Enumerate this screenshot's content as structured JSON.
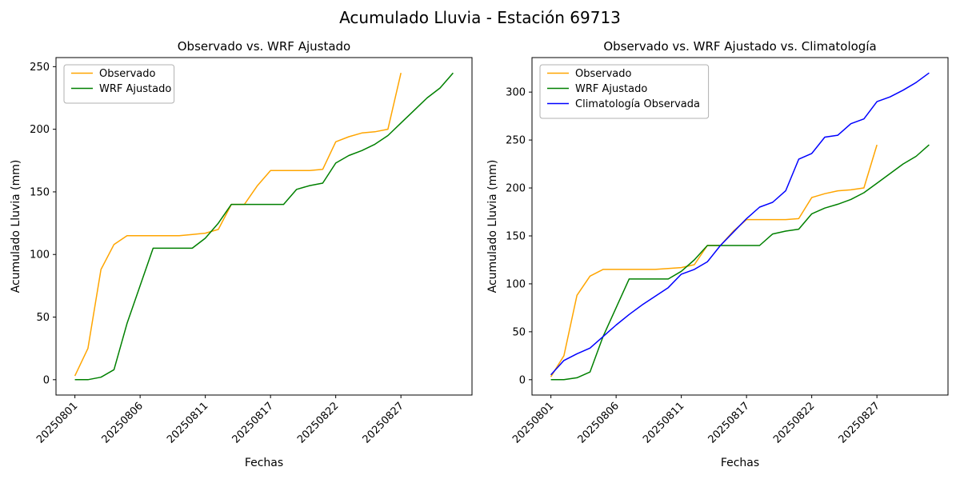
{
  "figure": {
    "title": "Acumulado Lluvia - Estación 69713",
    "background": "#ffffff"
  },
  "colors": {
    "observado": "#ffa500",
    "wrf_ajustado": "#008000",
    "climatologia": "#0000ff",
    "axes": "#000000",
    "legend_border": "#b0b0b0"
  },
  "chart_data": [
    {
      "type": "line",
      "title": "Observado vs. WRF Ajustado",
      "xlabel": "Fechas",
      "ylabel": "Acumulado Lluvia (mm)",
      "grid": false,
      "legend_position": "upper-left",
      "x_dates": [
        "20250801",
        "20250802",
        "20250803",
        "20250804",
        "20250805",
        "20250806",
        "20250807",
        "20250808",
        "20250809",
        "20250810",
        "20250811",
        "20250813",
        "20250814",
        "20250815",
        "20250816",
        "20250817",
        "20250818",
        "20250819",
        "20250820",
        "20250821",
        "20250822",
        "20250823",
        "20250824",
        "20250825",
        "20250826",
        "20250827",
        "20250828",
        "20250829",
        "20250830",
        "20250831"
      ],
      "x_tick_indices": [
        0,
        5,
        10,
        15,
        20,
        25
      ],
      "x_tick_labels": [
        "20250801",
        "20250806",
        "20250811",
        "20250817",
        "20250822",
        "20250827"
      ],
      "x_tick_rotation": 45,
      "y_ticks": [
        0,
        50,
        100,
        150,
        200,
        250
      ],
      "ylim": [
        -12.25,
        257.25
      ],
      "xlim": [
        -1.45,
        30.45
      ],
      "series": [
        {
          "name": "observado",
          "label": "Observado",
          "color": "#ffa500",
          "values": [
            3,
            25,
            88,
            108,
            115,
            115,
            115,
            115,
            115,
            116,
            117,
            120,
            140,
            140,
            155,
            167,
            167,
            167,
            167,
            168,
            190,
            194,
            197,
            198,
            200,
            245,
            null,
            null,
            null,
            null
          ]
        },
        {
          "name": "wrf-ajustado",
          "label": "WRF Ajustado",
          "color": "#008000",
          "values": [
            0,
            0,
            2,
            8,
            45,
            75,
            105,
            105,
            105,
            105,
            113,
            125,
            140,
            140,
            140,
            140,
            140,
            152,
            155,
            157,
            173,
            179,
            183,
            188,
            195,
            205,
            215,
            225,
            233,
            245
          ]
        }
      ]
    },
    {
      "type": "line",
      "title": "Observado vs. WRF Ajustado vs. Climatología",
      "xlabel": "Fechas",
      "ylabel": "Acumulado Lluvia (mm)",
      "grid": false,
      "legend_position": "upper-left",
      "x_dates": [
        "20250801",
        "20250802",
        "20250803",
        "20250804",
        "20250805",
        "20250806",
        "20250807",
        "20250808",
        "20250809",
        "20250810",
        "20250811",
        "20250813",
        "20250814",
        "20250815",
        "20250816",
        "20250817",
        "20250818",
        "20250819",
        "20250820",
        "20250821",
        "20250822",
        "20250823",
        "20250824",
        "20250825",
        "20250826",
        "20250827",
        "20250828",
        "20250829",
        "20250830",
        "20250831"
      ],
      "x_tick_indices": [
        0,
        5,
        10,
        15,
        20,
        25
      ],
      "x_tick_labels": [
        "20250801",
        "20250806",
        "20250811",
        "20250817",
        "20250822",
        "20250827"
      ],
      "x_tick_rotation": 45,
      "y_ticks": [
        0,
        50,
        100,
        150,
        200,
        250,
        300
      ],
      "ylim": [
        -16,
        336
      ],
      "xlim": [
        -1.45,
        30.45
      ],
      "series": [
        {
          "name": "observado",
          "label": "Observado",
          "color": "#ffa500",
          "values": [
            3,
            25,
            88,
            108,
            115,
            115,
            115,
            115,
            115,
            116,
            117,
            120,
            140,
            140,
            155,
            167,
            167,
            167,
            167,
            168,
            190,
            194,
            197,
            198,
            200,
            245,
            null,
            null,
            null,
            null
          ]
        },
        {
          "name": "wrf-ajustado",
          "label": "WRF Ajustado",
          "color": "#008000",
          "values": [
            0,
            0,
            2,
            8,
            45,
            75,
            105,
            105,
            105,
            105,
            113,
            125,
            140,
            140,
            140,
            140,
            140,
            152,
            155,
            157,
            173,
            179,
            183,
            188,
            195,
            205,
            215,
            225,
            233,
            245
          ]
        },
        {
          "name": "climatologia-observada",
          "label": "Climatología Observada",
          "color": "#0000ff",
          "values": [
            5,
            20,
            27,
            33,
            45,
            57,
            68,
            78,
            87,
            96,
            110,
            115,
            123,
            140,
            154,
            168,
            180,
            185,
            197,
            230,
            236,
            253,
            255,
            267,
            272,
            290,
            295,
            302,
            310,
            320
          ]
        }
      ]
    }
  ]
}
